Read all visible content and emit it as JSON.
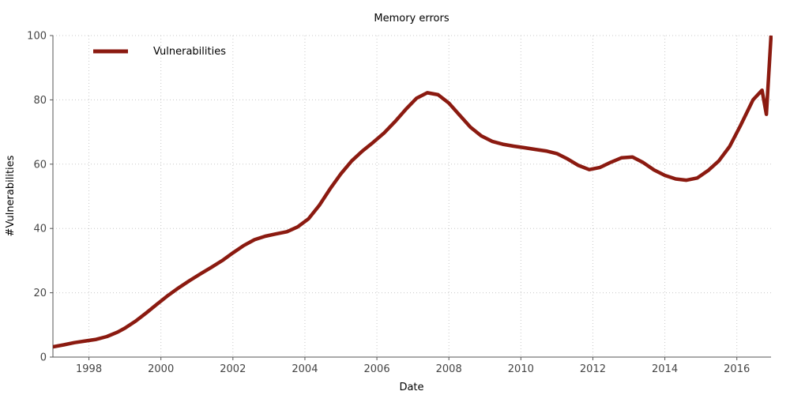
{
  "chart_data": {
    "type": "line",
    "title": "Memory errors",
    "xlabel": "Date",
    "ylabel": "#Vulnerabilities",
    "xlim": [
      1997.0,
      2016.95
    ],
    "ylim": [
      0,
      100
    ],
    "x_ticks": [
      1998,
      2000,
      2002,
      2004,
      2006,
      2008,
      2010,
      2012,
      2014,
      2016
    ],
    "y_ticks": [
      0,
      20,
      40,
      60,
      80,
      100
    ],
    "grid": true,
    "legend_position": "top-left",
    "series": [
      {
        "name": "Vulnerabilities",
        "color": "#8b1a10",
        "x": [
          1997.0,
          1997.3,
          1997.6,
          1997.9,
          1998.2,
          1998.5,
          1998.8,
          1999.0,
          1999.3,
          1999.6,
          1999.9,
          2000.2,
          2000.5,
          2000.8,
          2001.1,
          2001.4,
          2001.7,
          2002.0,
          2002.3,
          2002.6,
          2002.9,
          2003.2,
          2003.5,
          2003.8,
          2004.1,
          2004.4,
          2004.7,
          2005.0,
          2005.3,
          2005.6,
          2005.9,
          2006.2,
          2006.5,
          2006.8,
          2007.1,
          2007.4,
          2007.7,
          2008.0,
          2008.3,
          2008.6,
          2008.9,
          2009.2,
          2009.5,
          2009.8,
          2010.1,
          2010.4,
          2010.7,
          2011.0,
          2011.3,
          2011.6,
          2011.9,
          2012.2,
          2012.5,
          2012.8,
          2013.1,
          2013.4,
          2013.7,
          2014.0,
          2014.3,
          2014.6,
          2014.9,
          2015.2,
          2015.5,
          2015.8,
          2016.1,
          2016.45,
          2016.7,
          2016.82
        ],
        "y": [
          3.2,
          3.8,
          4.5,
          5.0,
          5.5,
          6.4,
          7.8,
          9.0,
          11.2,
          13.8,
          16.5,
          19.2,
          21.6,
          23.8,
          25.9,
          27.9,
          30.0,
          32.4,
          34.7,
          36.5,
          37.6,
          38.3,
          39.0,
          40.5,
          43.0,
          47.2,
          52.3,
          57.0,
          61.0,
          64.1,
          66.8,
          69.7,
          73.2,
          77.0,
          80.5,
          82.2,
          81.6,
          79.0,
          75.2,
          71.5,
          68.8,
          67.1,
          66.2,
          65.6,
          65.1,
          64.6,
          64.1,
          63.3,
          61.6,
          59.6,
          58.3,
          59.0,
          60.6,
          62.0,
          62.2,
          60.5,
          58.2,
          56.5,
          55.4,
          55.0,
          55.7,
          58.0,
          61.0,
          65.5,
          72.0,
          80.0,
          83.0,
          75.5
        ]
      }
    ],
    "extra_point": {
      "x": 2016.95,
      "y": 100
    }
  }
}
